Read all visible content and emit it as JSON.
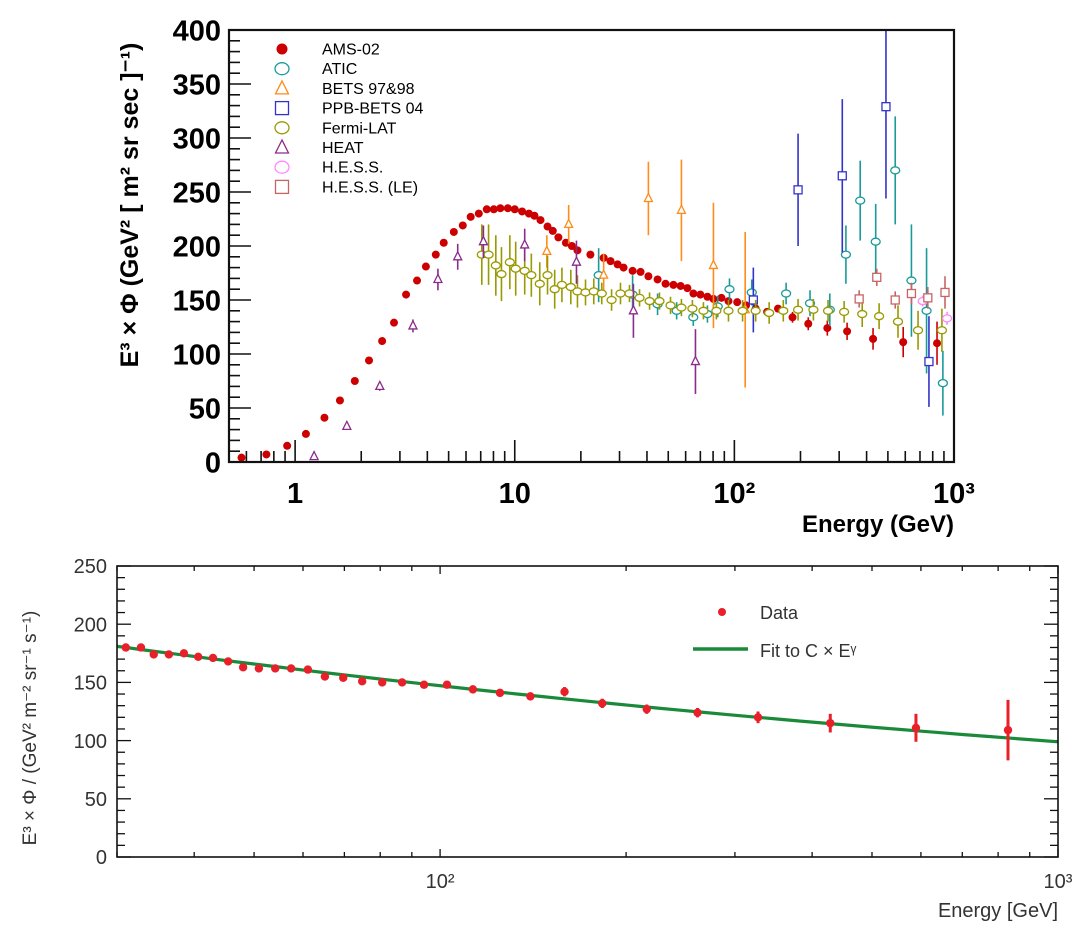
{
  "chart_data": [
    {
      "type": "scatter",
      "title": "",
      "xlabel": "Energy (GeV)",
      "ylabel": "E³ × Φ (GeV² [ m² sr sec ]⁻¹)",
      "xscale": "log",
      "xlim": [
        0.5,
        1000
      ],
      "ylim": [
        0,
        400
      ],
      "xticks": [
        {
          "value": 1,
          "label": "1"
        },
        {
          "value": 10,
          "label": "10"
        },
        {
          "value": 100,
          "label": "10²"
        },
        {
          "value": 1000,
          "label": "10³"
        }
      ],
      "yticks": [
        {
          "value": 0,
          "label": "0"
        },
        {
          "value": 50,
          "label": "50"
        },
        {
          "value": 100,
          "label": "100"
        },
        {
          "value": 150,
          "label": "150"
        },
        {
          "value": 200,
          "label": "200"
        },
        {
          "value": 250,
          "label": "250"
        },
        {
          "value": 300,
          "label": "300"
        },
        {
          "value": 350,
          "label": "350"
        },
        {
          "value": 400,
          "label": "400"
        }
      ],
      "grid": false,
      "legend_position": "top-left",
      "series": [
        {
          "name": "AMS-02",
          "color": "#cc0000",
          "marker": "filled-circle",
          "x": [
            0.57,
            0.74,
            0.92,
            1.12,
            1.36,
            1.6,
            1.87,
            2.17,
            2.49,
            2.82,
            3.2,
            3.59,
            3.94,
            4.37,
            4.75,
            5.28,
            5.8,
            6.3,
            6.86,
            7.46,
            8.03,
            8.6,
            9.3,
            10,
            10.8,
            11.6,
            12.3,
            13.1,
            14.1,
            14.9,
            15.8,
            17.1,
            18.2,
            19.3,
            22.1,
            25.4,
            27.3,
            29.4,
            31.3,
            34.4,
            37.4,
            40.6,
            44.7,
            48.6,
            52.8,
            56.9,
            61.1,
            65.1,
            70,
            75.4,
            80.3,
            87.3,
            94,
            103,
            113,
            125,
            141,
            158,
            184,
            217,
            265,
            326,
            428,
            587,
            837
          ],
          "y": [
            4,
            7,
            15,
            26,
            41,
            57,
            75,
            94,
            112,
            129,
            155,
            168,
            181,
            192,
            203,
            213,
            219,
            227,
            230,
            234,
            234,
            235,
            235,
            234,
            232,
            230,
            228,
            224,
            218,
            214,
            208,
            203,
            200,
            196,
            192,
            189,
            186,
            183,
            180,
            177,
            176,
            172,
            169,
            165,
            164,
            163,
            161,
            156,
            155,
            153,
            151,
            152,
            149,
            148,
            145,
            142,
            139,
            142,
            134,
            128,
            124,
            121,
            114,
            111,
            110
          ],
          "err": [
            3,
            3,
            3,
            3,
            3,
            3,
            3,
            3,
            3,
            3,
            3,
            3,
            3,
            3,
            3,
            3,
            3,
            3,
            3,
            3,
            3,
            3,
            3,
            3,
            3,
            3,
            3,
            3,
            3,
            3,
            3,
            3,
            3,
            3,
            3,
            3,
            3,
            3,
            3,
            3,
            3,
            3,
            3,
            3,
            3,
            3,
            3,
            3,
            3,
            3,
            3,
            3,
            3,
            3,
            3,
            3,
            3,
            3,
            5,
            6,
            7,
            8,
            10,
            14,
            20
          ]
        },
        {
          "name": "ATIC",
          "color": "#1a9a9a",
          "marker": "open-circle",
          "x": [
            24.1,
            34.4,
            44.7,
            54.6,
            65,
            75.4,
            84,
            95,
            120,
            172,
            221,
            272,
            322,
            374,
            440,
            540,
            640,
            750,
            890
          ],
          "y": [
            173,
            155,
            146,
            140,
            134,
            137,
            144,
            160,
            157,
            156,
            147,
            141,
            192,
            242,
            204,
            270,
            168,
            140,
            73
          ],
          "err": [
            25,
            18,
            10,
            8,
            8,
            8,
            10,
            10,
            12,
            10,
            12,
            15,
            27,
            37,
            35,
            50,
            52,
            58,
            30
          ]
        },
        {
          "name": "BETS 97&98",
          "color": "#ff8c1a",
          "marker": "open-triangle",
          "x": [
            14,
            17.6,
            25.4,
            40.6,
            57.4,
            80.3,
            112
          ],
          "y": [
            195,
            220,
            173,
            244,
            233,
            182,
            141
          ],
          "err": [
            15,
            18,
            20,
            34,
            47,
            58,
            72
          ]
        },
        {
          "name": "PPB-BETS 04",
          "color": "#3333cc",
          "marker": "open-square",
          "x": [
            122,
            195,
            310,
            490,
            769
          ],
          "y": [
            150,
            252,
            265,
            329,
            93
          ],
          "err": [
            30,
            52,
            71,
            85,
            42
          ]
        },
        {
          "name": "Fermi-LAT",
          "color": "#999900",
          "marker": "open-circle",
          "x": [
            7.08,
            7.6,
            8.2,
            8.7,
            9.5,
            10.1,
            11.1,
            11.9,
            13,
            14.1,
            15.2,
            16.4,
            18,
            19.3,
            21,
            22.9,
            24.9,
            27.6,
            30.3,
            33.3,
            37,
            41.1,
            45.6,
            51.2,
            57.4,
            64.4,
            72.3,
            82.8,
            94,
            109,
            125,
            144,
            167,
            195,
            229,
            267,
            316,
            382,
            456,
            556,
            686,
            881
          ],
          "y": [
            192,
            192,
            182,
            174,
            185,
            179,
            177,
            173,
            165,
            173,
            160,
            164,
            162,
            158,
            157,
            158,
            156,
            150,
            156,
            156,
            152,
            149,
            149,
            145,
            143,
            142,
            140,
            140,
            140,
            140,
            140,
            138,
            140,
            141,
            141,
            140,
            139,
            137,
            135,
            130,
            122,
            122
          ],
          "err": [
            28,
            28,
            28,
            25,
            25,
            25,
            22,
            20,
            20,
            18,
            18,
            16,
            16,
            15,
            12,
            12,
            10,
            10,
            10,
            8,
            8,
            8,
            8,
            8,
            8,
            8,
            8,
            8,
            10,
            10,
            10,
            10,
            10,
            10,
            10,
            10,
            10,
            12,
            12,
            15,
            18,
            20
          ]
        },
        {
          "name": "HEAT",
          "color": "#8b2b8b",
          "marker": "open-triangle",
          "x": [
            1.22,
            1.72,
            2.43,
            3.44,
            4.47,
            5.5,
            7.2,
            11.1,
            19.1,
            34.7,
            66.5
          ],
          "y": [
            5,
            33,
            70,
            126,
            169,
            190,
            204,
            201,
            185,
            140,
            93
          ],
          "err": [
            3,
            3,
            4,
            6,
            10,
            12,
            15,
            15,
            20,
            25,
            30
          ]
        },
        {
          "name": "H.E.S.S.",
          "color": "#ff88ff",
          "marker": "open-circle",
          "x": [
            720,
            930
          ],
          "y": [
            149,
            133
          ],
          "err": [
            5,
            6
          ]
        },
        {
          "name": "H.E.S.S. (LE)",
          "color": "#c86464",
          "marker": "open-square",
          "x": [
            370,
            445,
            540,
            640,
            760,
            910
          ],
          "y": [
            151,
            171,
            150,
            156,
            152,
            157
          ],
          "err": [
            8,
            8,
            8,
            10,
            10,
            15
          ]
        }
      ]
    },
    {
      "type": "scatter",
      "title": "",
      "xlabel": "Energy [GeV]",
      "ylabel": "E³ × Φ / (GeV² m⁻² sr⁻¹ s⁻¹)",
      "xscale": "log",
      "xlim": [
        30,
        1000
      ],
      "ylim": [
        0,
        250
      ],
      "xticks": [
        {
          "value": 100,
          "label": "10²"
        },
        {
          "value": 1000,
          "label": "10³"
        }
      ],
      "yticks": [
        {
          "value": 0,
          "label": "0"
        },
        {
          "value": 50,
          "label": "50"
        },
        {
          "value": 100,
          "label": "100"
        },
        {
          "value": 150,
          "label": "150"
        },
        {
          "value": 200,
          "label": "200"
        },
        {
          "value": 250,
          "label": "250"
        }
      ],
      "grid": false,
      "legend_position": "top-right",
      "series": [
        {
          "name": "Data",
          "color": "#e8202a",
          "marker": "filled-circle",
          "x": [
            31.0,
            32.8,
            34.4,
            36.4,
            38.5,
            40.6,
            42.9,
            45.4,
            48.0,
            50.9,
            54.1,
            57.4,
            61.1,
            65.1,
            69.7,
            74.8,
            80.6,
            86.8,
            94.2,
            102.6,
            113,
            125,
            140,
            159,
            183,
            216,
            261,
            327,
            428,
            589,
            830
          ],
          "y": [
            180,
            180,
            174,
            174,
            175,
            172,
            171,
            168,
            163,
            162,
            162,
            162,
            161,
            155,
            154,
            151,
            150,
            150,
            148,
            148,
            144,
            141,
            138,
            142,
            132,
            127,
            124,
            120,
            115,
            111,
            109
          ],
          "err": [
            2,
            2,
            2,
            2,
            2,
            2,
            2,
            2,
            2,
            2,
            2,
            2,
            2,
            2,
            2,
            2,
            2,
            2,
            2,
            2,
            2,
            2,
            2,
            4,
            4,
            4,
            4,
            5,
            8,
            12,
            26
          ]
        }
      ],
      "fit": {
        "name": "Fit to C × Eᵞ",
        "color": "#1a8a3a",
        "x": [
          30,
          1000
        ],
        "y": [
          181,
          99
        ]
      }
    }
  ]
}
